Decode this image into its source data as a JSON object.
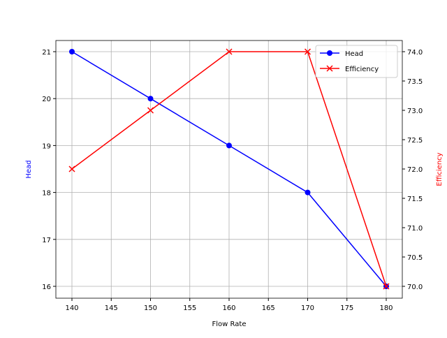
{
  "chart_data": {
    "type": "line",
    "x": [
      140,
      150,
      160,
      170,
      180
    ],
    "xlabel": "Flow Rate",
    "series": [
      {
        "name": "Head",
        "axis": "left",
        "color": "#0000ff",
        "marker": "o",
        "values": [
          21,
          20,
          19,
          18,
          16
        ]
      },
      {
        "name": "Efficiency",
        "axis": "right",
        "color": "#ff0000",
        "marker": "x",
        "values": [
          72,
          73,
          74,
          74,
          70
        ]
      }
    ],
    "ylabel_left": "Head",
    "ylabel_right": "Efficiency",
    "xticks": [
      "140",
      "145",
      "150",
      "155",
      "160",
      "165",
      "170",
      "175",
      "180"
    ],
    "yticks_left": [
      "16",
      "17",
      "18",
      "19",
      "20",
      "21"
    ],
    "yticks_right": [
      "70.0",
      "70.5",
      "71.0",
      "71.5",
      "72.0",
      "72.5",
      "73.0",
      "73.5",
      "74.0"
    ],
    "legend_position": "upper right",
    "grid": true
  }
}
